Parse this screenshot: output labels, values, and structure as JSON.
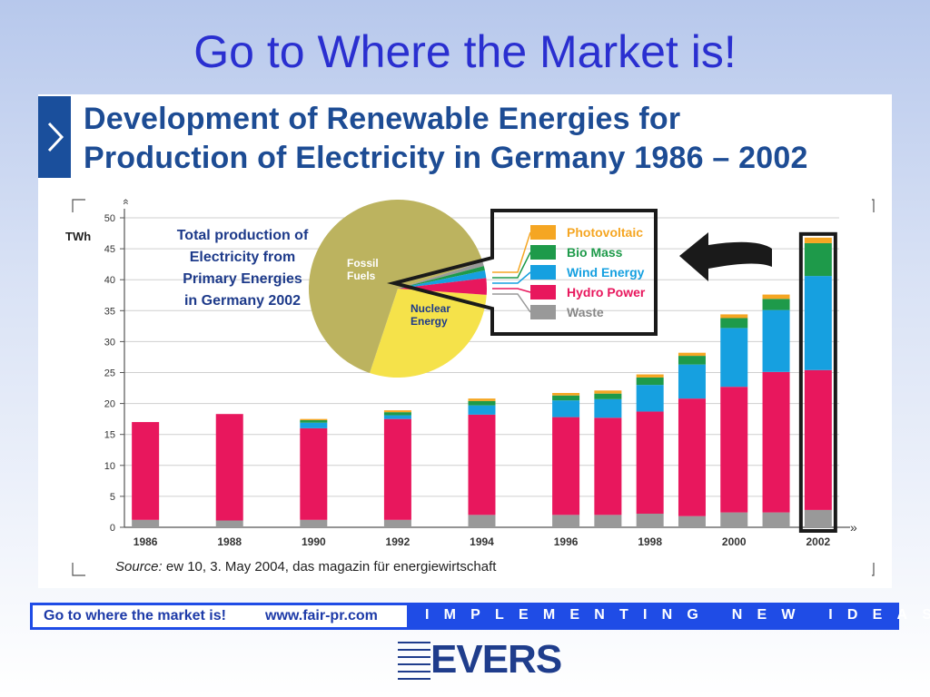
{
  "slide_title": "Go to Where the Market is!",
  "panel": {
    "title_line1": "Development of Renewable Energies for",
    "title_line2": "Production of Electricity in Germany 1986 – 2002"
  },
  "inset": {
    "title_lines": [
      "Total production of",
      "Electricity from",
      "Primary Energies",
      "in Germany 2002"
    ],
    "slices": [
      {
        "label_lines": [
          "Fossil",
          "Fuels"
        ],
        "share": 0.65,
        "color": "#bcb35f"
      },
      {
        "label_lines": [
          "Nuclear",
          "Energy"
        ],
        "share": 0.29,
        "color": "#f5e24a"
      },
      {
        "label_lines": [],
        "share": 0.014,
        "color": "#16a0e0"
      },
      {
        "label_lines": [],
        "share": 0.03,
        "color": "#e8175d"
      },
      {
        "label_lines": [],
        "share": 0.008,
        "color": "#1e9a4a"
      },
      {
        "label_lines": [],
        "share": 0.008,
        "color": "#999999"
      }
    ]
  },
  "footer": {
    "left_slogan": "Go to where the market is!",
    "left_url": "www.fair-pr.com",
    "right_tagline": "IMPLEMENTING NEW IDEAS"
  },
  "logo": {
    "text": "EVERS"
  },
  "chart_data": {
    "type": "bar",
    "stacked": true,
    "ylabel": "TWh",
    "ylim": [
      0,
      50
    ],
    "yticks": [
      0,
      5,
      10,
      15,
      20,
      25,
      30,
      35,
      40,
      45,
      50
    ],
    "categories": [
      "1986",
      "1987",
      "1988",
      "1989",
      "1990",
      "1991",
      "1992",
      "1993",
      "1994",
      "1995",
      "1996",
      "1997",
      "1998",
      "1999",
      "2000",
      "2001",
      "2002"
    ],
    "xtick_labels": [
      "1986",
      "1988",
      "1990",
      "1992",
      "1994",
      "1996",
      "1998",
      "2000",
      "2002"
    ],
    "legend_position": "top-right",
    "highlight_category": "2002",
    "series": [
      {
        "name": "Waste",
        "color": "#999999",
        "values": [
          1.2,
          null,
          1.1,
          null,
          1.2,
          null,
          1.2,
          null,
          2.0,
          null,
          2.0,
          2.0,
          2.2,
          1.8,
          2.4,
          2.4,
          2.8
        ]
      },
      {
        "name": "Hydro Power",
        "color": "#e8175d",
        "values": [
          15.8,
          null,
          17.2,
          null,
          14.8,
          null,
          16.3,
          null,
          16.2,
          null,
          15.8,
          15.7,
          16.5,
          19.0,
          20.3,
          22.7,
          22.6
        ]
      },
      {
        "name": "Wind Energy",
        "color": "#16a0e0",
        "values": [
          0,
          null,
          0,
          null,
          0.9,
          null,
          0.6,
          null,
          1.5,
          null,
          2.7,
          3.0,
          4.3,
          5.5,
          9.5,
          10.0,
          15.2
        ]
      },
      {
        "name": "Bio Mass",
        "color": "#1e9a4a",
        "values": [
          0,
          null,
          0,
          null,
          0.4,
          null,
          0.5,
          null,
          0.7,
          null,
          0.8,
          0.9,
          1.2,
          1.4,
          1.6,
          1.8,
          5.3
        ]
      },
      {
        "name": "Photovoltaic",
        "color": "#f5a623",
        "values": [
          0,
          null,
          0,
          null,
          0.2,
          null,
          0.3,
          null,
          0.4,
          null,
          0.4,
          0.5,
          0.5,
          0.5,
          0.6,
          0.7,
          0.9
        ]
      }
    ],
    "source_label": "Source:",
    "source_text": "ew 10, 3. May 2004, das magazin für energiewirtschaft"
  }
}
